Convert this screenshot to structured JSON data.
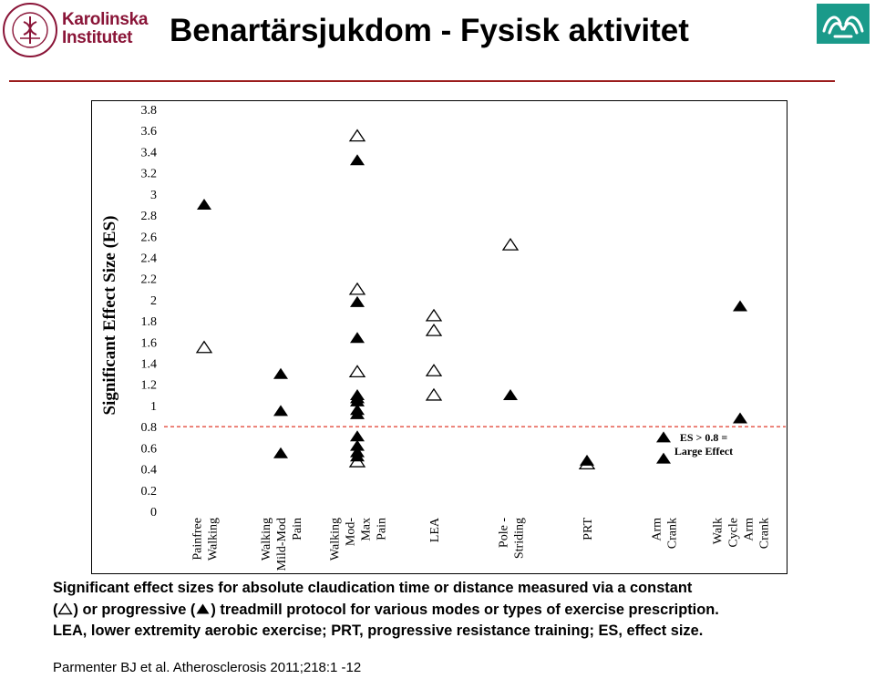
{
  "header": {
    "title": "Benartärsjukdom - Fysisk aktivitet",
    "logo_left": {
      "line1": "Karolinska",
      "line2": "Institutet",
      "seal_text": "KAROLINSKA INSTITUTET · ANNO 1810",
      "color": "#8a1538"
    },
    "logo_right": {
      "icon": "hands-logo-icon",
      "color": "#1a9a8a"
    },
    "rule_color": "#9b1c1c"
  },
  "chart_data": {
    "type": "scatter",
    "ylabel": "Significant Effect Size (ES)",
    "ylim": [
      0,
      3.8
    ],
    "yticks": [
      "0",
      "0.2",
      "0.4",
      "0.6",
      "0.8",
      "1",
      "1.2",
      "1.4",
      "1.6",
      "1.8",
      "2",
      "2.2",
      "2.4",
      "2.6",
      "2.8",
      "3",
      "3.2",
      "3.4",
      "3.6",
      "3.8"
    ],
    "categories": [
      [
        "Painfree",
        "Walking"
      ],
      [
        "Walking",
        "Mild-Mod",
        "Pain"
      ],
      [
        "Walking",
        "Mod-",
        "Max",
        "Pain"
      ],
      [
        "LEA"
      ],
      [
        "Pole -",
        "Striding"
      ],
      [
        "PRT"
      ],
      [
        "Arm",
        "Crank"
      ],
      [
        "Walk",
        "Cycle",
        "Arm",
        "Crank"
      ]
    ],
    "threshold": {
      "value": 0.8,
      "label_line1": "ES > 0.8 =",
      "label_line2": "Large Effect",
      "color": "#e03a2a"
    },
    "series": [
      {
        "marker": "open-triangle",
        "points": [
          {
            "category": 0,
            "y": 1.55
          },
          {
            "category": 2,
            "y": 3.55
          },
          {
            "category": 2,
            "y": 2.1
          },
          {
            "category": 2,
            "y": 1.32
          },
          {
            "category": 2,
            "y": 0.47
          },
          {
            "category": 3,
            "y": 1.85
          },
          {
            "category": 3,
            "y": 1.71
          },
          {
            "category": 3,
            "y": 1.33
          },
          {
            "category": 3,
            "y": 1.1
          },
          {
            "category": 4,
            "y": 2.52
          },
          {
            "category": 5,
            "y": 0.45
          }
        ]
      },
      {
        "marker": "filled-triangle",
        "points": [
          {
            "category": 0,
            "y": 2.9
          },
          {
            "category": 1,
            "y": 1.3
          },
          {
            "category": 1,
            "y": 0.95
          },
          {
            "category": 1,
            "y": 0.55
          },
          {
            "category": 2,
            "y": 3.32
          },
          {
            "category": 2,
            "y": 1.98
          },
          {
            "category": 2,
            "y": 1.64
          },
          {
            "category": 2,
            "y": 1.1
          },
          {
            "category": 2,
            "y": 1.07
          },
          {
            "category": 2,
            "y": 1.04
          },
          {
            "category": 2,
            "y": 0.96
          },
          {
            "category": 2,
            "y": 0.92
          },
          {
            "category": 2,
            "y": 0.71
          },
          {
            "category": 2,
            "y": 0.62
          },
          {
            "category": 2,
            "y": 0.56
          },
          {
            "category": 2,
            "y": 0.52
          },
          {
            "category": 4,
            "y": 1.1
          },
          {
            "category": 5,
            "y": 0.48
          },
          {
            "category": 6,
            "y": 0.7
          },
          {
            "category": 6,
            "y": 0.5
          },
          {
            "category": 7,
            "y": 1.94
          },
          {
            "category": 7,
            "y": 0.88
          }
        ]
      }
    ]
  },
  "caption": {
    "line1": "Significant effect sizes for absolute claudication time or distance measured via a constant",
    "open_paren": "(",
    "constant_close": ") or progressive (",
    "progressive_close": ") treadmill protocol for various modes or types of exercise prescription.",
    "line3": "LEA, lower extremity aerobic exercise; PRT, progressive resistance training; ES, effect size."
  },
  "source": "Parmenter BJ et al. Atherosclerosis 2011;218:1 -12"
}
